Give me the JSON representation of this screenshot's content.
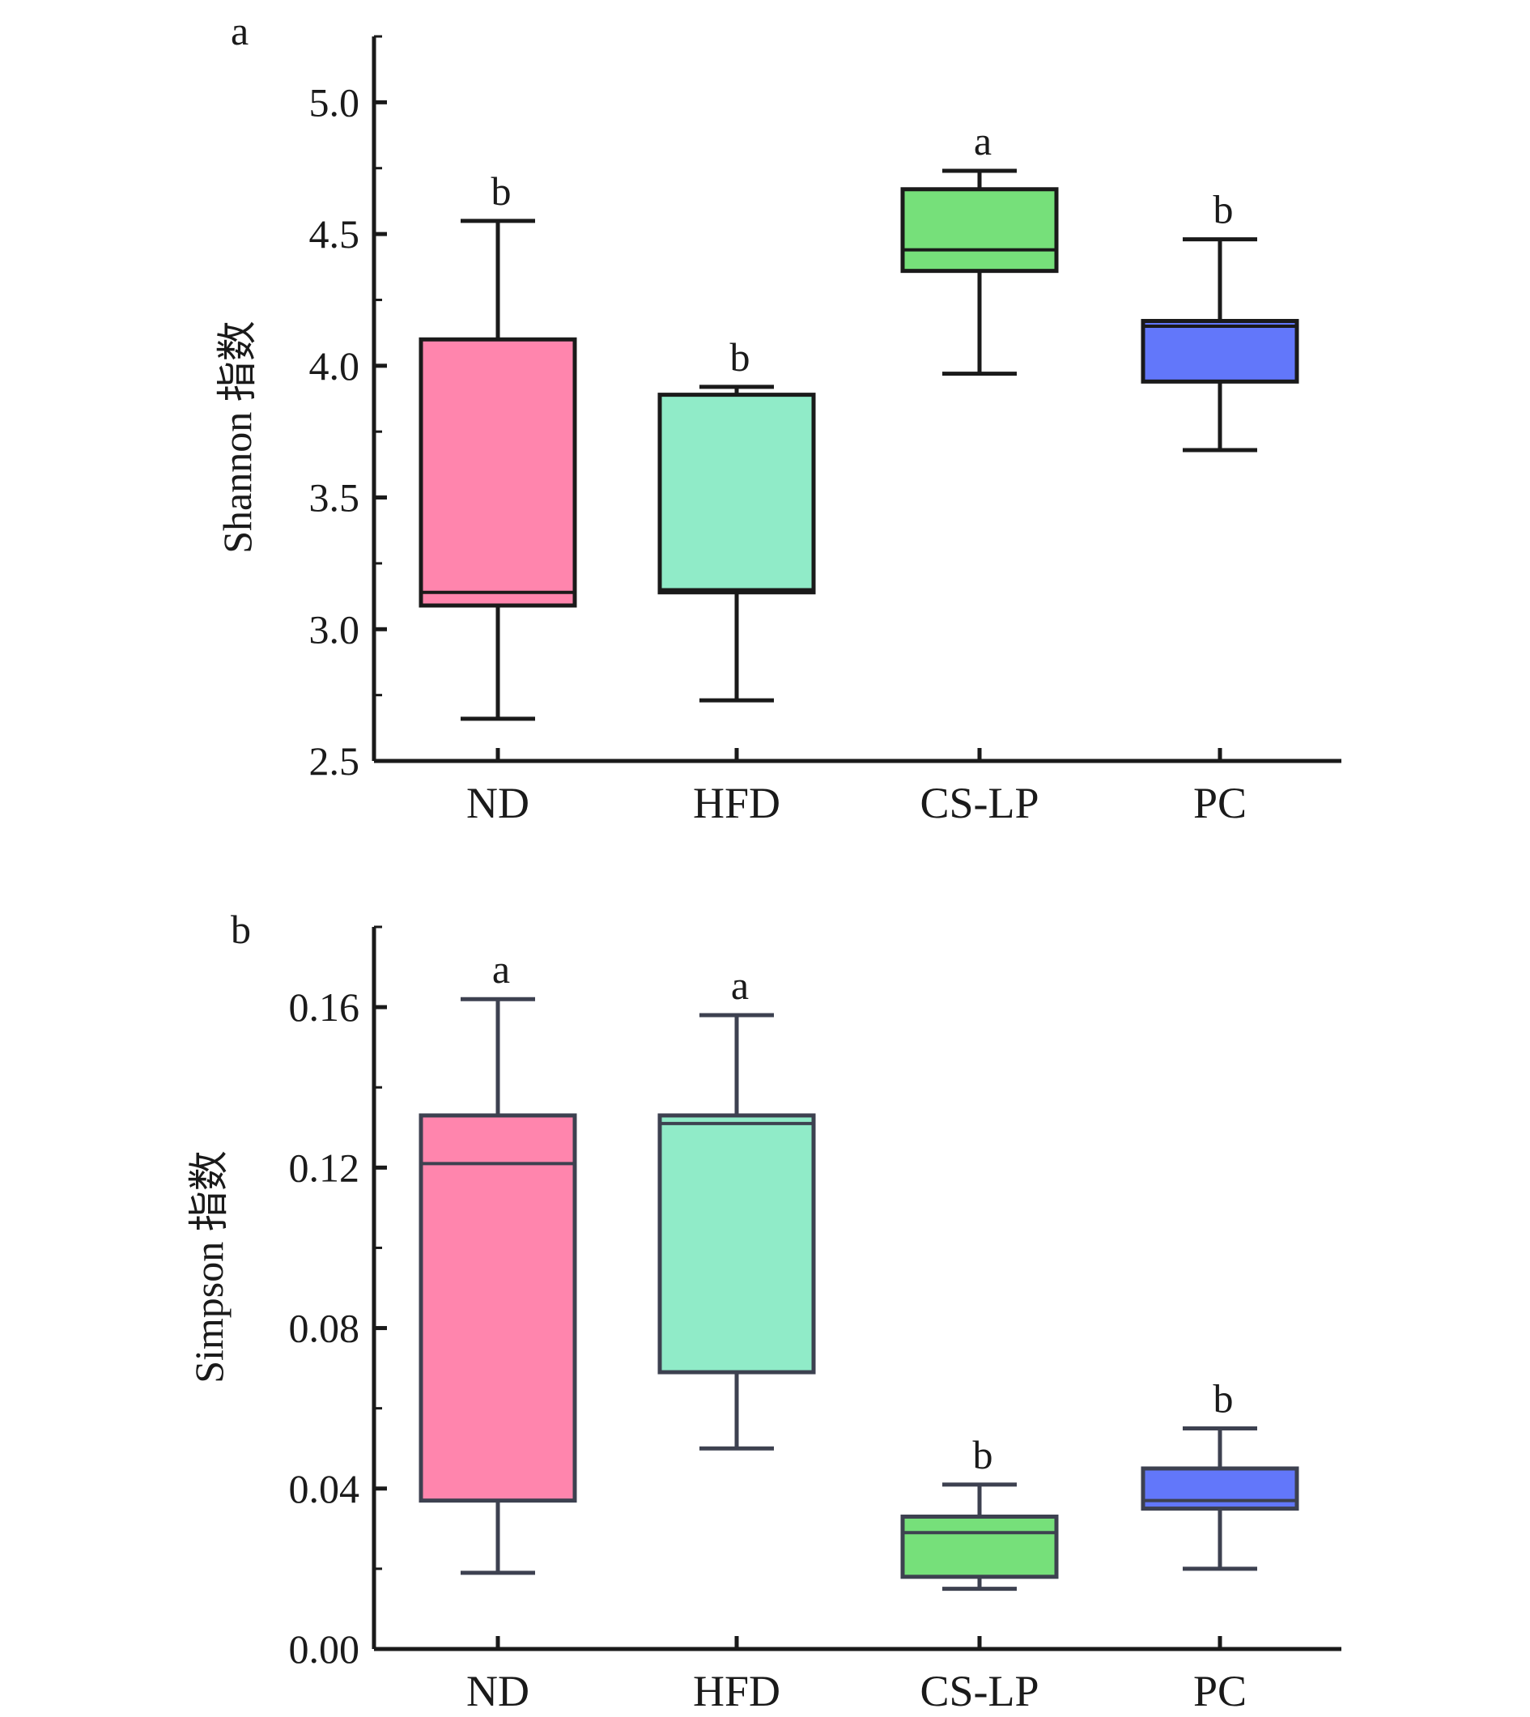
{
  "chart_data": [
    {
      "type": "box",
      "panel_label": "a",
      "ylabel": "Shannon 指数",
      "ylim": [
        2.5,
        5.25
      ],
      "yticks": [
        2.5,
        3.0,
        3.5,
        4.0,
        4.5,
        5.0
      ],
      "ytick_labels": [
        "2.5",
        "3.0",
        "3.5",
        "4.0",
        "4.5",
        "5.0"
      ],
      "categories": [
        "ND",
        "HFD",
        "CS-LP",
        "PC"
      ],
      "boxes": [
        {
          "name": "ND",
          "min": 2.66,
          "q1": 3.09,
          "median": 3.14,
          "q3": 4.1,
          "max": 4.55,
          "sig": "b",
          "color": "#ff85ad",
          "edge": "#1a1a1a"
        },
        {
          "name": "HFD",
          "min": 2.73,
          "q1": 3.14,
          "median": 3.15,
          "q3": 3.89,
          "max": 3.92,
          "sig": "b",
          "color": "#90ebc8",
          "edge": "#1a1a1a"
        },
        {
          "name": "CS-LP",
          "min": 3.97,
          "q1": 4.36,
          "median": 4.44,
          "q3": 4.67,
          "max": 4.74,
          "sig": "a",
          "color": "#76e07a",
          "edge": "#1a1a1a"
        },
        {
          "name": "PC",
          "min": 3.68,
          "q1": 3.94,
          "median": 4.15,
          "q3": 4.17,
          "max": 4.48,
          "sig": "b",
          "color": "#6277fa",
          "edge": "#1a1a1a"
        }
      ]
    },
    {
      "type": "box",
      "panel_label": "b",
      "ylabel": "Simpson 指数",
      "ylim": [
        0.0,
        0.18
      ],
      "yticks": [
        0.0,
        0.04,
        0.08,
        0.12,
        0.16
      ],
      "ytick_labels": [
        "0.00",
        "0.04",
        "0.08",
        "0.12",
        "0.16"
      ],
      "categories": [
        "ND",
        "HFD",
        "CS-LP",
        "PC"
      ],
      "boxes": [
        {
          "name": "ND",
          "min": 0.019,
          "q1": 0.037,
          "median": 0.121,
          "q3": 0.133,
          "max": 0.162,
          "sig": "a",
          "color": "#ff85ad",
          "edge": "#3d4150"
        },
        {
          "name": "HFD",
          "min": 0.05,
          "q1": 0.069,
          "median": 0.131,
          "q3": 0.133,
          "max": 0.158,
          "sig": "a",
          "color": "#90ebc8",
          "edge": "#3d4150"
        },
        {
          "name": "CS-LP",
          "min": 0.015,
          "q1": 0.018,
          "median": 0.029,
          "q3": 0.033,
          "max": 0.041,
          "sig": "b",
          "color": "#76e07a",
          "edge": "#3d4150"
        },
        {
          "name": "PC",
          "min": 0.02,
          "q1": 0.035,
          "median": 0.037,
          "q3": 0.045,
          "max": 0.055,
          "sig": "b",
          "color": "#6277fa",
          "edge": "#3d4150"
        }
      ]
    }
  ]
}
